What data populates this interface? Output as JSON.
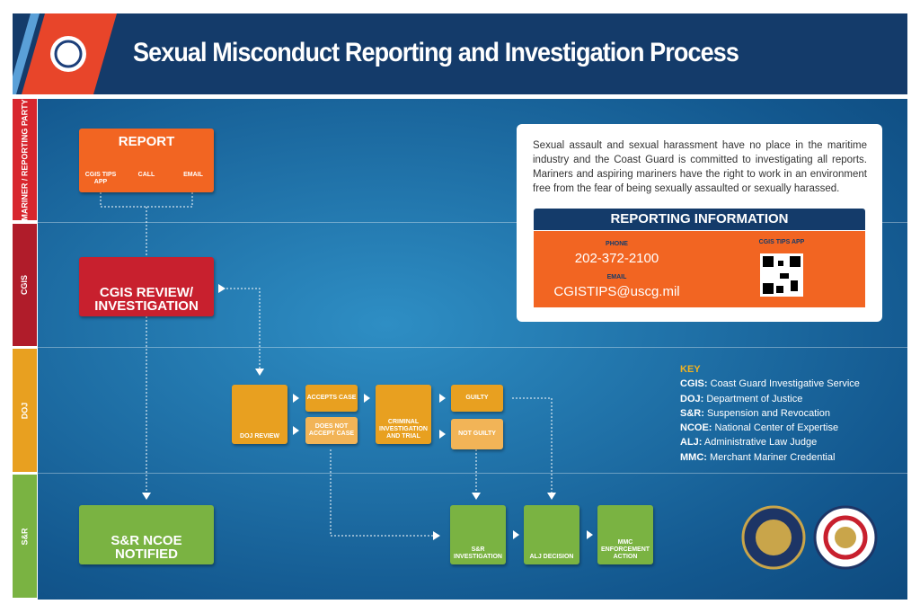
{
  "header": {
    "title": "Sexual Misconduct Reporting and Investigation Process"
  },
  "lanes": [
    "MARINER / REPORTING PARTY",
    "CGIS",
    "DOJ",
    "S&R"
  ],
  "report": {
    "title": "REPORT",
    "options": [
      "CGIS TIPS APP",
      "CALL",
      "EMAIL"
    ]
  },
  "cgis": {
    "review": "CGIS REVIEW/ INVESTIGATION"
  },
  "doj": {
    "review": "DOJ REVIEW",
    "accepts": "ACCEPTS CASE",
    "not_accept": "DOES NOT ACCEPT CASE",
    "trial": "CRIMINAL INVESTIGATION AND TRIAL",
    "guilty": "GUILTY",
    "not_guilty": "NOT GUILTY"
  },
  "sr": {
    "notified": "S&R NCOE NOTIFIED",
    "investigation": "S&R INVESTIGATION",
    "alj": "ALJ DECISION",
    "mmc": "MMC ENFORCEMENT ACTION"
  },
  "info": {
    "statement": "Sexual assault and sexual harassment have no place in the maritime industry and the Coast Guard is committed to investigating all reports. Mariners and aspiring mariners have the right to work in an environment free from the fear of being sexually assaulted or sexually harassed.",
    "heading": "REPORTING INFORMATION",
    "phone_label": "PHONE",
    "phone": "202-372-2100",
    "email_label": "EMAIL",
    "email": "CGISTIPS@uscg.mil",
    "app_label": "CGIS TIPS APP"
  },
  "key": {
    "title": "KEY",
    "items": [
      {
        "term": "CGIS:",
        "definition": "Coast Guard Investigative Service"
      },
      {
        "term": "DOJ:",
        "definition": "Department of Justice"
      },
      {
        "term": "S&R:",
        "definition": "Suspension and Revocation"
      },
      {
        "term": "NCOE:",
        "definition": "National Center of Expertise"
      },
      {
        "term": "ALJ:",
        "definition": "Administrative Law Judge"
      },
      {
        "term": "MMC:",
        "definition": "Merchant Mariner Credential"
      }
    ]
  }
}
